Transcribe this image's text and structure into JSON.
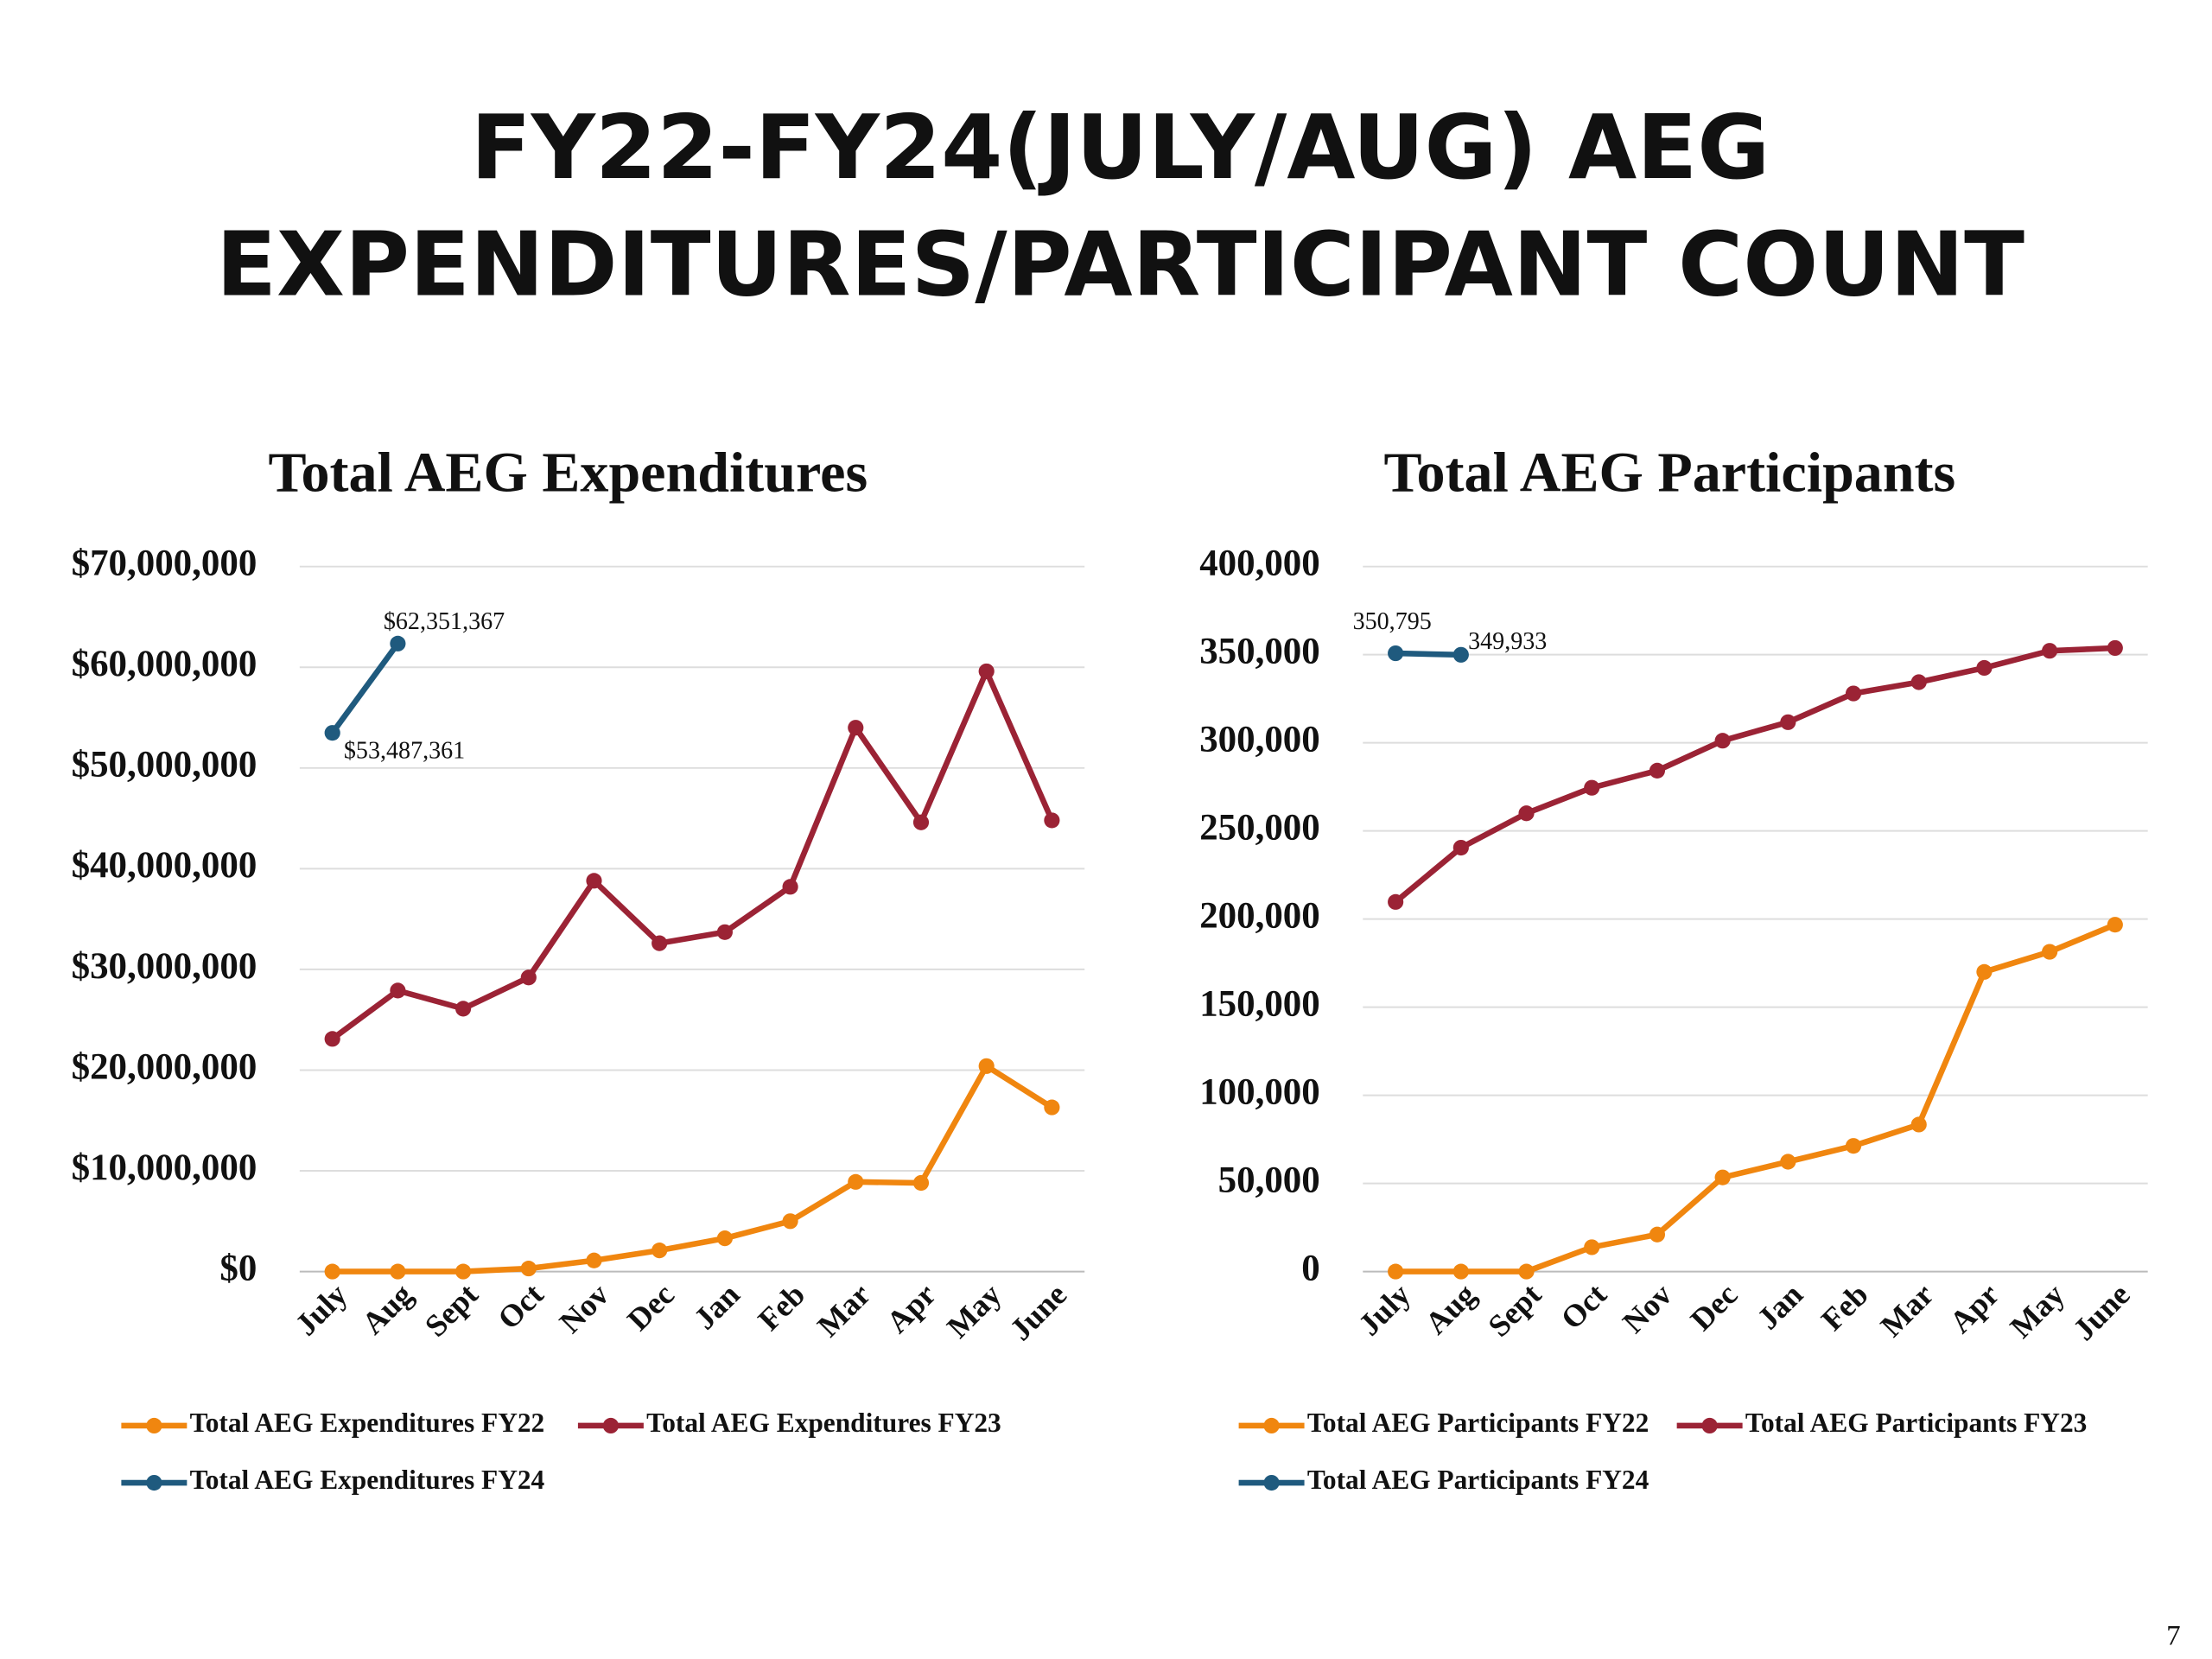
{
  "slide": {
    "title_lines": [
      "FY22-FY24(JULY/AUG) AEG",
      "EXPENDITURES/PARTICIPANT COUNT"
    ],
    "page_number": 7
  },
  "chart_data": [
    {
      "type": "line",
      "title": "Total AEG Expenditures",
      "categories": [
        "July",
        "Aug",
        "Sept",
        "Oct",
        "Nov",
        "Dec",
        "Jan",
        "Feb",
        "Mar",
        "Apr",
        "May",
        "June"
      ],
      "series": [
        {
          "name": "Total AEG Expenditures FY22",
          "color": "#f0860f",
          "values": [
            0,
            0,
            0,
            300000,
            1100000,
            2100000,
            3300000,
            5000000,
            8900000,
            8800000,
            20400000,
            16300000
          ]
        },
        {
          "name": "Total AEG Expenditures FY23",
          "color": "#9b2335",
          "values": [
            23100000,
            27900000,
            26100000,
            29200000,
            38800000,
            32600000,
            33700000,
            38200000,
            54000000,
            44600000,
            59600000,
            44800000
          ]
        },
        {
          "name": "Total AEG Expenditures FY24",
          "color": "#1f5a7e",
          "values": [
            53487361,
            62351367,
            null,
            null,
            null,
            null,
            null,
            null,
            null,
            null,
            null,
            null
          ],
          "value_labels": [
            "$53,487,361",
            "$62,351,367",
            null,
            null,
            null,
            null,
            null,
            null,
            null,
            null,
            null,
            null
          ]
        }
      ],
      "ylim": [
        0,
        70000000
      ],
      "yticks": [
        {
          "value": 0,
          "label": "$0"
        },
        {
          "value": 10000000,
          "label": "$10,000,000"
        },
        {
          "value": 20000000,
          "label": "$20,000,000"
        },
        {
          "value": 30000000,
          "label": "$30,000,000"
        },
        {
          "value": 40000000,
          "label": "$40,000,000"
        },
        {
          "value": 50000000,
          "label": "$50,000,000"
        },
        {
          "value": 60000000,
          "label": "$60,000,000"
        },
        {
          "value": 70000000,
          "label": "$70,000,000"
        }
      ],
      "grid": true,
      "legend": "bottom"
    },
    {
      "type": "line",
      "title": "Total AEG Participants",
      "categories": [
        "July",
        "Aug",
        "Sept",
        "Oct",
        "Nov",
        "Dec",
        "Jan",
        "Feb",
        "Mar",
        "Apr",
        "May",
        "June"
      ],
      "series": [
        {
          "name": "Total AEG Participants FY22",
          "color": "#f0860f",
          "values": [
            0,
            0,
            0,
            13800,
            21000,
            53400,
            62300,
            71300,
            83400,
            170000,
            181400,
            196800
          ]
        },
        {
          "name": "Total AEG Participants FY23",
          "color": "#9b2335",
          "values": [
            209700,
            240500,
            260000,
            274500,
            284200,
            301200,
            311700,
            328000,
            334400,
            342500,
            352200,
            353800
          ]
        },
        {
          "name": "Total AEG Participants FY24",
          "color": "#1f5a7e",
          "values": [
            350795,
            349933,
            null,
            null,
            null,
            null,
            null,
            null,
            null,
            null,
            null,
            null
          ],
          "value_labels": [
            "350,795",
            "349,933",
            null,
            null,
            null,
            null,
            null,
            null,
            null,
            null,
            null,
            null
          ]
        }
      ],
      "ylim": [
        0,
        400000
      ],
      "yticks": [
        0,
        {
          "value": 50000,
          "label": "50,000"
        },
        {
          "value": 100000,
          "label": "100,000"
        },
        {
          "value": 150000,
          "label": "150,000"
        },
        {
          "value": 200000,
          "label": "200,000"
        },
        {
          "value": 250000,
          "label": "250,000"
        },
        {
          "value": 300000,
          "label": "300,000"
        },
        {
          "value": 350000,
          "label": "350,000"
        },
        {
          "value": 400000,
          "label": "400,000"
        }
      ],
      "grid": true,
      "legend": "bottom"
    }
  ]
}
